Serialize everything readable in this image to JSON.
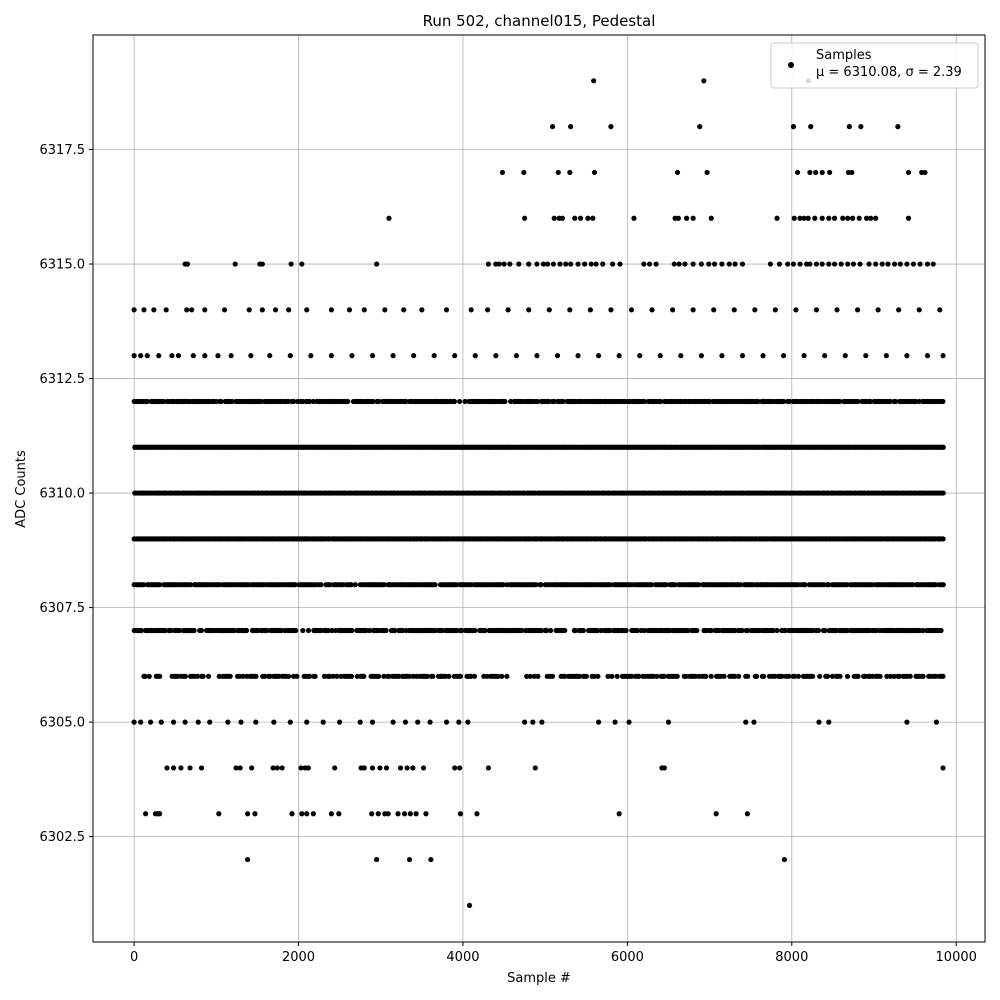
{
  "chart_data": {
    "type": "scatter",
    "title": "Run 502, channel015, Pedestal",
    "xlabel": "Sample #",
    "ylabel": "ADC Counts",
    "xlim": [
      -500,
      10350
    ],
    "ylim": [
      6300.2,
      6320.0
    ],
    "xticks": [
      0,
      2000,
      4000,
      6000,
      8000,
      10000
    ],
    "xtick_labels": [
      "0",
      "2000",
      "4000",
      "6000",
      "8000",
      "10000"
    ],
    "yticks": [
      6302.5,
      6305.0,
      6307.5,
      6310.0,
      6312.5,
      6315.0,
      6317.5
    ],
    "ytick_labels": [
      "6302.5",
      "6305.0",
      "6307.5",
      "6310.0",
      "6312.5",
      "6315.0",
      "6317.5"
    ],
    "grid": true,
    "legend_position": "top-right",
    "marker_color": "#000000",
    "series": [
      {
        "name": "Samples",
        "stats_label": "μ = 6310.08, σ = 2.39",
        "x_range": [
          0,
          9850
        ],
        "band_levels": [
          {
            "y": 6314,
            "x": [
              0,
              120,
              240,
              390,
              640,
              700,
              860,
              1100,
              1400,
              1560,
              1720,
              1880,
              2100,
              2400,
              2620,
              2800,
              3050,
              3280,
              3500,
              3800,
              4100,
              4300,
              4550,
              4800,
              5050,
              5300,
              5550,
              5800,
              6050,
              6300,
              6550,
              6800,
              7050,
              7300,
              7550,
              7800,
              8050,
              8300,
              8550,
              8800,
              9050,
              9300,
              9550,
              9800
            ]
          },
          {
            "y": 6313,
            "x": [
              0,
              80,
              160,
              300,
              460,
              540,
              720,
              860,
              1020,
              1180,
              1420,
              1650,
              1900,
              2150,
              2400,
              2650,
              2900,
              3150,
              3400,
              3650,
              3900,
              4150,
              4400,
              4650,
              4900,
              5150,
              5400,
              5650,
              5900,
              6150,
              6400,
              6650,
              6900,
              7150,
              7400,
              7650,
              7900,
              8150,
              8400,
              8650,
              8900,
              9150,
              9400,
              9650,
              9840
            ]
          },
          {
            "y": 6305,
            "x": [
              0,
              80,
              200,
              330,
              480,
              620,
              780,
              920,
              1140,
              1300,
              1480,
              1700,
              1900,
              2100,
              2300,
              2500,
              2750,
              2900,
              3150,
              3300,
              3450,
              3600,
              3800,
              3950,
              4060,
              4750,
              4850,
              4960,
              5650,
              5850,
              6020,
              6500,
              7440,
              7540,
              8330,
              8450,
              9400,
              9760
            ]
          },
          {
            "y": 6304,
            "x": [
              400,
              480,
              570,
              680,
              820,
              1240,
              1290,
              1430,
              1690,
              1740,
              1800,
              2030,
              2080,
              2120,
              2440,
              2760,
              2800,
              2900,
              2990,
              3070,
              3240,
              3320,
              3390,
              3520,
              3900,
              3960,
              4310,
              4880,
              6420,
              6450,
              9840
            ]
          },
          {
            "y": 6303,
            "x": [
              140,
              260,
              290,
              310,
              1030,
              1380,
              1470,
              1920,
              2040,
              2100,
              2180,
              2400,
              2490,
              2890,
              2970,
              3050,
              3090,
              3210,
              3290,
              3360,
              3430,
              3550,
              3970,
              4170,
              5900,
              7080,
              7460
            ]
          },
          {
            "y": 6302,
            "x": [
              1380,
              2950,
              3350,
              3610,
              7910
            ]
          },
          {
            "y": 6301,
            "x": [
              4080
            ]
          },
          {
            "y": 6315,
            "x": [
              620,
              650,
              1230,
              1530,
              1560,
              1910,
              2040,
              2950,
              4310,
              4400,
              4440,
              4500,
              4570,
              4680,
              4800,
              4900,
              4980,
              5030,
              5100,
              5180,
              5250,
              5310,
              5400,
              5480,
              5560,
              5620,
              5700,
              5820,
              5910,
              6200,
              6270,
              6350,
              6570,
              6630,
              6700,
              6800,
              6900,
              6990,
              7060,
              7150,
              7240,
              7310,
              7400,
              7740,
              7850,
              7950,
              8020,
              8100,
              8180,
              8220,
              8300,
              8370,
              8450,
              8520,
              8600,
              8680,
              8750,
              8830,
              8940,
              9020,
              9100,
              9170,
              9250,
              9320,
              9400,
              9480,
              9560,
              9650,
              9720
            ]
          },
          {
            "y": 6316,
            "x": [
              3100,
              4750,
              5110,
              5170,
              5210,
              5360,
              5430,
              5520,
              5580,
              6080,
              6580,
              6620,
              6720,
              6800,
              7020,
              7820,
              8030,
              8100,
              8150,
              8200,
              8280,
              8370,
              8450,
              8520,
              8620,
              8680,
              8740,
              8820,
              8910,
              8960,
              9020,
              9420
            ]
          },
          {
            "y": 6317,
            "x": [
              4480,
              4740,
              5160,
              5300,
              5600,
              6610,
              6970,
              8070,
              8220,
              8290,
              8370,
              8460,
              8690,
              8730,
              9420,
              9580,
              9620
            ]
          },
          {
            "y": 6318,
            "x": [
              5090,
              5310,
              5800,
              6880,
              8020,
              8230,
              8700,
              8840,
              9290
            ]
          },
          {
            "y": 6319,
            "x": [
              5590,
              6930,
              8200
            ]
          }
        ],
        "dense_levels": [
          6306,
          6307,
          6308,
          6309,
          6310,
          6311,
          6312
        ],
        "dense_density": [
          0.55,
          0.75,
          0.9,
          1.0,
          1.0,
          1.0,
          0.9
        ]
      }
    ]
  },
  "legend": {
    "series_label": "Samples",
    "stats_label": "μ = 6310.08, σ = 2.39"
  }
}
